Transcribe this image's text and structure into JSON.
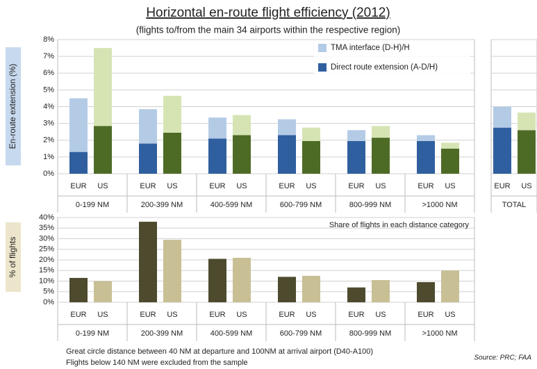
{
  "chart_data": [
    {
      "type": "stacked_bar",
      "title": "Horizontal en-route flight efficiency (2012)",
      "subtitle": "(flights to/from the main 34 airports within the respective region)",
      "y_label": "En-route extension (%)",
      "groups": [
        "0-199 NM",
        "200-399 NM",
        "400-599 NM",
        "600-799 NM",
        "800-999 NM",
        ">1000 NM",
        "TOTAL"
      ],
      "subgroups": [
        "EUR",
        "US"
      ],
      "series": [
        {
          "name": "Direct route extension (A-D/H)",
          "colors": [
            "#2f5f9f",
            "#4e6b26"
          ],
          "values": [
            [
              1.3,
              2.85
            ],
            [
              1.8,
              2.45
            ],
            [
              2.1,
              2.3
            ],
            [
              2.3,
              1.95
            ],
            [
              1.95,
              2.15
            ],
            [
              1.95,
              1.5
            ],
            [
              2.75,
              2.6
            ]
          ]
        },
        {
          "name": "TMA interface (D-H)/H",
          "colors": [
            "#b4cbe6",
            "#d6e4b4"
          ],
          "values": [
            [
              3.2,
              4.65
            ],
            [
              2.05,
              2.2
            ],
            [
              1.25,
              1.2
            ],
            [
              0.95,
              0.8
            ],
            [
              0.65,
              0.7
            ],
            [
              0.35,
              0.35
            ],
            [
              1.25,
              1.05
            ]
          ]
        }
      ],
      "ylim": [
        0,
        8
      ],
      "yticks": [
        {
          "value": 0,
          "label": "0%"
        },
        {
          "value": 1,
          "label": "1%"
        },
        {
          "value": 2,
          "label": "2%"
        },
        {
          "value": 3,
          "label": "3%"
        },
        {
          "value": 4,
          "label": "4%"
        },
        {
          "value": 5,
          "label": "5%"
        },
        {
          "value": 6,
          "label": "6%"
        },
        {
          "value": 7,
          "label": "7%"
        },
        {
          "value": 8,
          "label": "8%"
        }
      ],
      "grid": true,
      "legend": "top-right"
    },
    {
      "type": "bar",
      "y_label": "% of flights",
      "annotation": "Share of flights in each distance category",
      "groups": [
        "0-199 NM",
        "200-399 NM",
        "400-599 NM",
        "600-799 NM",
        "800-999 NM",
        ">1000 NM"
      ],
      "subgroups": [
        "EUR",
        "US"
      ],
      "colors": [
        "#4d4a2e",
        "#c8bf95"
      ],
      "values": [
        [
          11.5,
          10
        ],
        [
          38,
          29.5
        ],
        [
          20.5,
          21
        ],
        [
          12,
          12.5
        ],
        [
          7,
          10.5
        ],
        [
          9.5,
          15
        ]
      ],
      "ylim": [
        0,
        40
      ],
      "yticks": [
        {
          "value": 0,
          "label": "0%"
        },
        {
          "value": 5,
          "label": "5%"
        },
        {
          "value": 10,
          "label": "10%"
        },
        {
          "value": 15,
          "label": "15%"
        },
        {
          "value": 20,
          "label": "20%"
        },
        {
          "value": 25,
          "label": "25%"
        },
        {
          "value": 30,
          "label": "30%"
        },
        {
          "value": 35,
          "label": "35%"
        },
        {
          "value": 40,
          "label": "40%"
        }
      ],
      "grid": true
    }
  ],
  "footer": {
    "notes": [
      "Great circle distance between 40 NM at departure and 100NM at arrival airport (D40-A100)",
      "Flights below 140 NM were excluded from the sample"
    ],
    "source": "Source: PRC; FAA"
  }
}
